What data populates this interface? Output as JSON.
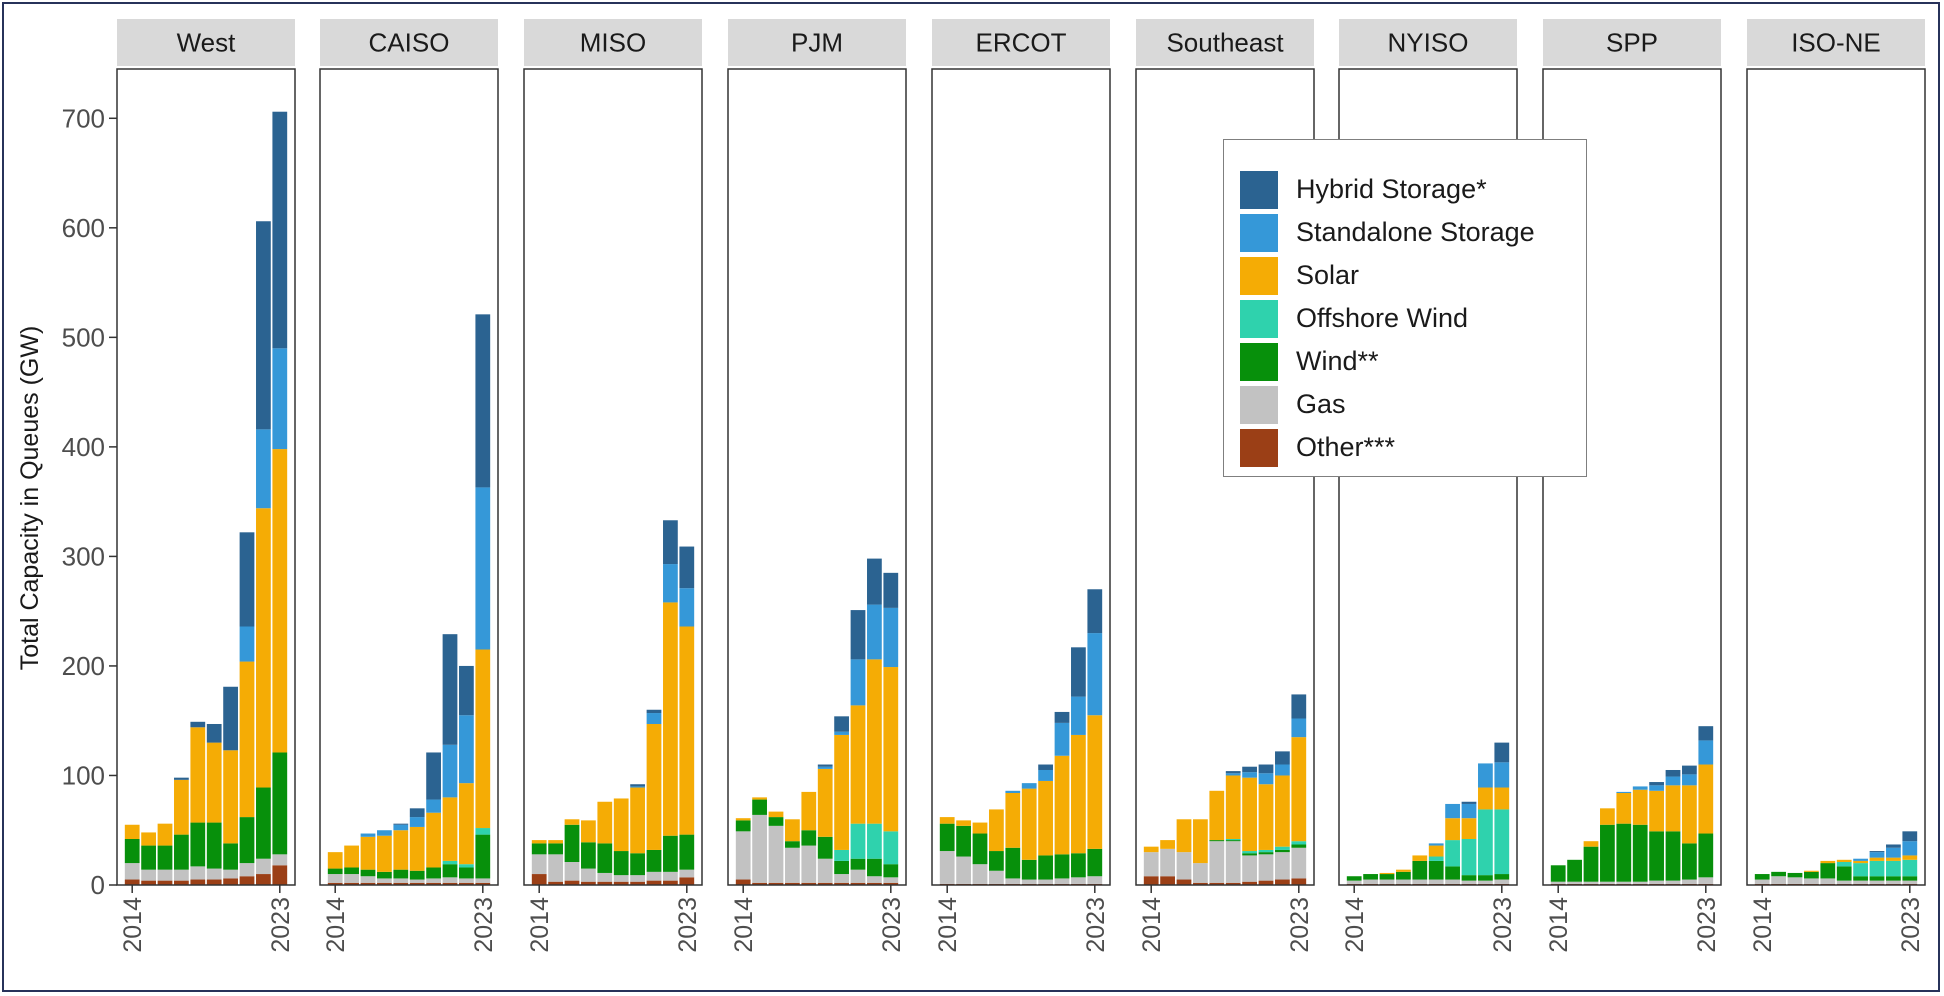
{
  "chart_data": {
    "type": "bar",
    "stacked": true,
    "faceted": true,
    "ylabel": "Total Capacity in Queues (GW)",
    "ylim": [
      0,
      745
    ],
    "yticks": [
      0,
      100,
      200,
      300,
      400,
      500,
      600,
      700
    ],
    "years": [
      2014,
      2015,
      2016,
      2017,
      2018,
      2019,
      2020,
      2021,
      2022,
      2023
    ],
    "x_tick_labels": [
      "2014",
      "2023"
    ],
    "legend_position": "top-right",
    "series": [
      {
        "key": "other",
        "name": "Other***",
        "color": "#9b3f16"
      },
      {
        "key": "gas",
        "name": "Gas",
        "color": "#c2c2c2"
      },
      {
        "key": "wind",
        "name": "Wind**",
        "color": "#07900b"
      },
      {
        "key": "offshore",
        "name": "Offshore Wind",
        "color": "#2fd2ad"
      },
      {
        "key": "solar",
        "name": "Solar",
        "color": "#f5ac05"
      },
      {
        "key": "standalone",
        "name": "Standalone Storage",
        "color": "#3598d8"
      },
      {
        "key": "hybrid",
        "name": "Hybrid Storage*",
        "color": "#2b6391"
      }
    ],
    "legend_order": [
      "hybrid",
      "standalone",
      "solar",
      "offshore",
      "wind",
      "gas",
      "other"
    ],
    "panels": [
      {
        "name": "West",
        "data": {
          "other": [
            5,
            4,
            4,
            4,
            5,
            5,
            6,
            8,
            10,
            18
          ],
          "gas": [
            15,
            10,
            10,
            10,
            12,
            10,
            8,
            12,
            14,
            10
          ],
          "wind": [
            22,
            22,
            22,
            32,
            40,
            42,
            24,
            42,
            65,
            93
          ],
          "offshore": [
            0,
            0,
            0,
            0,
            0,
            0,
            0,
            0,
            0,
            0
          ],
          "solar": [
            13,
            12,
            20,
            50,
            87,
            73,
            85,
            142,
            255,
            277
          ],
          "standalone": [
            0,
            0,
            0,
            0,
            0,
            0,
            0,
            32,
            72,
            92
          ],
          "hybrid": [
            0,
            0,
            0,
            2,
            5,
            17,
            58,
            86,
            190,
            216
          ]
        }
      },
      {
        "name": "CAISO",
        "data": {
          "other": [
            2,
            2,
            2,
            2,
            2,
            2,
            2,
            2,
            2,
            2
          ],
          "gas": [
            8,
            8,
            6,
            4,
            4,
            3,
            4,
            5,
            4,
            4
          ],
          "wind": [
            5,
            6,
            6,
            6,
            8,
            8,
            10,
            12,
            10,
            40
          ],
          "offshore": [
            0,
            0,
            0,
            0,
            0,
            0,
            0,
            3,
            3,
            6
          ],
          "solar": [
            15,
            20,
            30,
            33,
            36,
            40,
            50,
            58,
            74,
            163
          ],
          "standalone": [
            0,
            0,
            3,
            5,
            5,
            9,
            12,
            48,
            62,
            148
          ],
          "hybrid": [
            0,
            0,
            0,
            0,
            1,
            8,
            43,
            101,
            45,
            158
          ]
        }
      },
      {
        "name": "MISO",
        "data": {
          "other": [
            10,
            3,
            4,
            3,
            3,
            3,
            3,
            4,
            4,
            7
          ],
          "gas": [
            18,
            25,
            17,
            12,
            8,
            6,
            6,
            8,
            8,
            7
          ],
          "wind": [
            10,
            10,
            34,
            24,
            27,
            22,
            20,
            20,
            33,
            32
          ],
          "offshore": [
            0,
            0,
            0,
            0,
            0,
            0,
            0,
            0,
            0,
            0
          ],
          "solar": [
            3,
            3,
            5,
            20,
            38,
            48,
            60,
            115,
            213,
            190
          ],
          "standalone": [
            0,
            0,
            0,
            0,
            0,
            0,
            1,
            10,
            35,
            35
          ],
          "hybrid": [
            0,
            0,
            0,
            0,
            0,
            0,
            2,
            3,
            40,
            38
          ]
        }
      },
      {
        "name": "PJM",
        "data": {
          "other": [
            5,
            2,
            2,
            2,
            2,
            2,
            2,
            2,
            2,
            2
          ],
          "gas": [
            44,
            62,
            52,
            32,
            34,
            22,
            8,
            12,
            6,
            5
          ],
          "wind": [
            10,
            14,
            8,
            6,
            14,
            20,
            12,
            10,
            16,
            12
          ],
          "offshore": [
            0,
            0,
            0,
            0,
            0,
            0,
            10,
            32,
            32,
            30
          ],
          "solar": [
            2,
            2,
            5,
            20,
            35,
            62,
            105,
            108,
            150,
            150
          ],
          "standalone": [
            0,
            0,
            0,
            0,
            0,
            2,
            3,
            42,
            50,
            54
          ],
          "hybrid": [
            0,
            0,
            0,
            0,
            0,
            2,
            14,
            45,
            42,
            32
          ]
        }
      },
      {
        "name": "ERCOT",
        "data": {
          "other": [
            1,
            1,
            1,
            1,
            1,
            1,
            1,
            1,
            1,
            1
          ],
          "gas": [
            30,
            25,
            18,
            12,
            5,
            4,
            4,
            5,
            6,
            7
          ],
          "wind": [
            25,
            28,
            28,
            18,
            28,
            18,
            22,
            22,
            22,
            25
          ],
          "offshore": [
            0,
            0,
            0,
            0,
            0,
            0,
            0,
            0,
            0,
            0
          ],
          "solar": [
            6,
            5,
            10,
            38,
            50,
            65,
            68,
            90,
            108,
            122
          ],
          "standalone": [
            0,
            0,
            0,
            0,
            2,
            5,
            10,
            30,
            35,
            75
          ],
          "hybrid": [
            0,
            0,
            0,
            0,
            0,
            0,
            5,
            10,
            45,
            40
          ]
        }
      },
      {
        "name": "Southeast",
        "data": {
          "other": [
            8,
            8,
            5,
            2,
            2,
            2,
            3,
            4,
            5,
            6
          ],
          "gas": [
            22,
            25,
            25,
            18,
            38,
            38,
            24,
            24,
            25,
            28
          ],
          "wind": [
            0,
            0,
            0,
            0,
            1,
            1,
            2,
            2,
            2,
            3
          ],
          "offshore": [
            0,
            0,
            0,
            0,
            0,
            1,
            2,
            2,
            3,
            3
          ],
          "solar": [
            5,
            8,
            30,
            40,
            45,
            58,
            67,
            60,
            65,
            95
          ],
          "standalone": [
            0,
            0,
            0,
            0,
            0,
            2,
            5,
            10,
            10,
            17
          ],
          "hybrid": [
            0,
            0,
            0,
            0,
            0,
            2,
            5,
            8,
            12,
            22
          ]
        }
      },
      {
        "name": "NYISO",
        "data": {
          "other": [
            1,
            1,
            1,
            1,
            1,
            1,
            1,
            1,
            1,
            1
          ],
          "gas": [
            3,
            4,
            4,
            4,
            4,
            4,
            4,
            3,
            3,
            4
          ],
          "wind": [
            4,
            5,
            5,
            7,
            17,
            17,
            12,
            5,
            5,
            5
          ],
          "offshore": [
            0,
            0,
            0,
            0,
            0,
            4,
            24,
            33,
            60,
            59
          ],
          "solar": [
            0,
            0,
            1,
            2,
            5,
            10,
            20,
            19,
            20,
            20
          ],
          "standalone": [
            0,
            0,
            0,
            0,
            0,
            2,
            13,
            13,
            22,
            23
          ],
          "hybrid": [
            0,
            0,
            0,
            0,
            0,
            0,
            0,
            2,
            0,
            18
          ]
        }
      },
      {
        "name": "SPP",
        "data": {
          "other": [
            1,
            1,
            1,
            1,
            1,
            1,
            1,
            1,
            1,
            1
          ],
          "gas": [
            2,
            2,
            2,
            2,
            2,
            2,
            3,
            3,
            4,
            6
          ],
          "wind": [
            15,
            20,
            32,
            52,
            53,
            52,
            45,
            45,
            33,
            40
          ],
          "offshore": [
            0,
            0,
            0,
            0,
            0,
            0,
            0,
            0,
            0,
            0
          ],
          "solar": [
            0,
            0,
            5,
            15,
            28,
            32,
            37,
            42,
            53,
            63
          ],
          "standalone": [
            0,
            0,
            0,
            0,
            1,
            3,
            5,
            8,
            10,
            22
          ],
          "hybrid": [
            0,
            0,
            0,
            0,
            0,
            0,
            3,
            6,
            8,
            13
          ]
        }
      },
      {
        "name": "ISO-NE",
        "data": {
          "other": [
            1,
            1,
            1,
            1,
            1,
            1,
            1,
            1,
            1,
            1
          ],
          "gas": [
            4,
            7,
            6,
            5,
            5,
            3,
            3,
            3,
            3,
            3
          ],
          "wind": [
            5,
            4,
            4,
            6,
            14,
            13,
            4,
            4,
            4,
            4
          ],
          "offshore": [
            0,
            0,
            0,
            0,
            0,
            4,
            12,
            14,
            14,
            15
          ],
          "solar": [
            0,
            0,
            0,
            1,
            2,
            2,
            2,
            3,
            3,
            4
          ],
          "standalone": [
            0,
            0,
            0,
            0,
            0,
            0,
            2,
            5,
            9,
            13
          ],
          "hybrid": [
            0,
            0,
            0,
            0,
            0,
            0,
            0,
            1,
            3,
            9
          ]
        }
      }
    ]
  }
}
